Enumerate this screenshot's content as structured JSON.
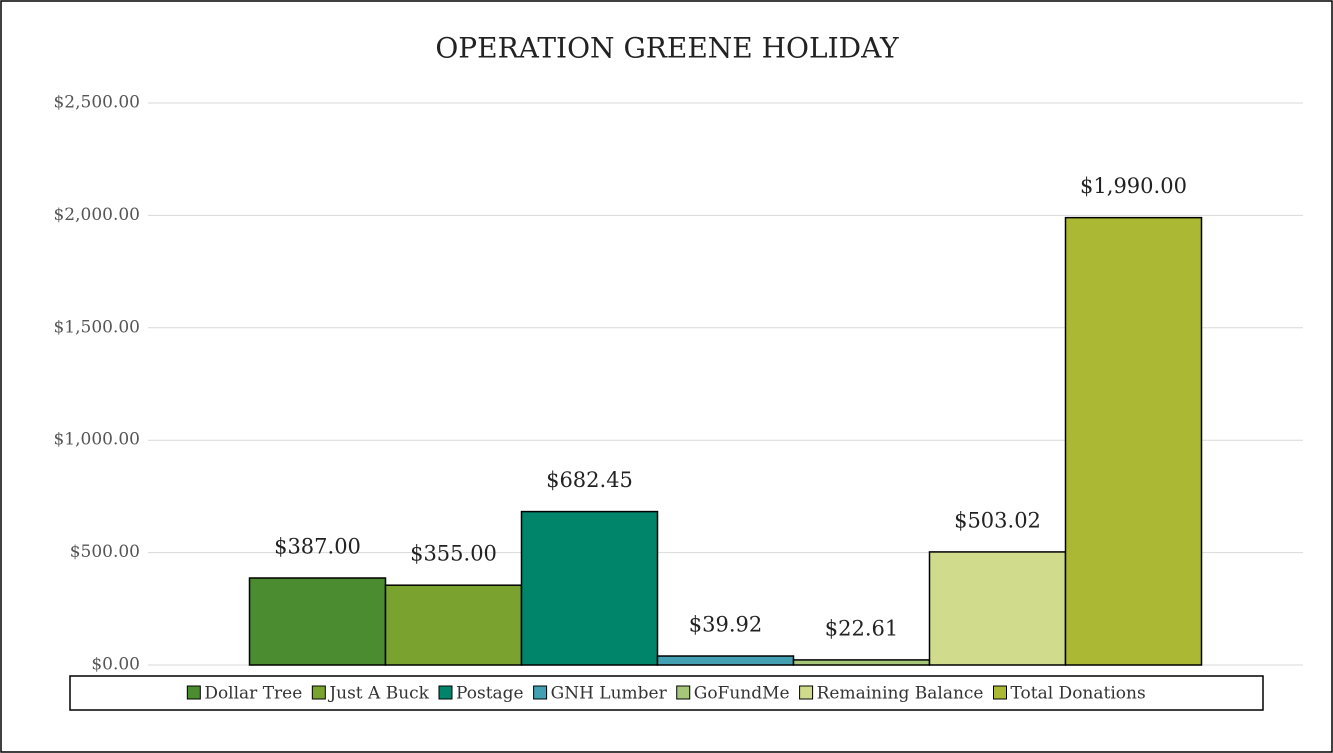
{
  "chart_data": {
    "type": "bar",
    "title": "OPERATION GREENE HOLIDAY",
    "series": [
      {
        "name": "Dollar Tree",
        "color": "#4a8c2f",
        "values": [
          387
        ],
        "value_labels": [
          "$387.00"
        ]
      },
      {
        "name": "Just A Buck",
        "color": "#79a32e",
        "values": [
          355
        ],
        "value_labels": [
          "$355.00"
        ]
      },
      {
        "name": "Postage",
        "color": "#00856a",
        "values": [
          682.45
        ],
        "value_labels": [
          "$682.45"
        ]
      },
      {
        "name": "GNH Lumber",
        "color": "#42a0b2",
        "values": [
          39.92
        ],
        "value_labels": [
          "$39.92"
        ]
      },
      {
        "name": "GoFundMe",
        "color": "#a6c679",
        "values": [
          22.61
        ],
        "value_labels": [
          "$22.61"
        ]
      },
      {
        "name": "Remaining Balance",
        "color": "#d0dc8c",
        "values": [
          503.02
        ],
        "value_labels": [
          "$503.02"
        ]
      },
      {
        "name": "Total Donations",
        "color": "#aab834",
        "values": [
          1990
        ],
        "value_labels": [
          "$1,990.00"
        ]
      }
    ],
    "ylim": [
      0,
      2500
    ],
    "yticks": [
      {
        "value": 0,
        "label": "$0.00"
      },
      {
        "value": 500,
        "label": "$500.00"
      },
      {
        "value": 1000,
        "label": "$1,000.00"
      },
      {
        "value": 1500,
        "label": "$1,500.00"
      },
      {
        "value": 2000,
        "label": "$2,000.00"
      },
      {
        "value": 2500,
        "label": "$2,500.00"
      }
    ],
    "grid": true,
    "legend": "bottom"
  }
}
